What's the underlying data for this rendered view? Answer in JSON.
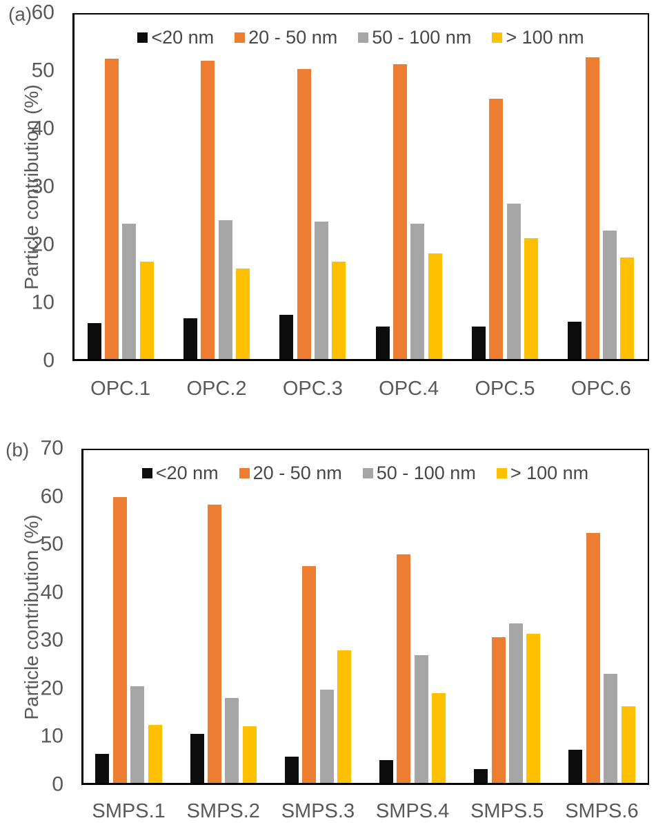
{
  "page": {
    "background": "#ffffff",
    "text_color": "#595959",
    "axis_color": "#000000"
  },
  "chart_data": [
    {
      "type": "bar",
      "panel_label": "(a)",
      "title": "",
      "ylabel": "Particle contribution (%)",
      "xlabel": "",
      "ylim": [
        0,
        60
      ],
      "yticks": [
        0,
        10,
        20,
        30,
        40,
        50,
        60
      ],
      "grid": false,
      "legend_position": "top-center-inside",
      "categories": [
        "OPC.1",
        "OPC.2",
        "OPC.3",
        "OPC.4",
        "OPC.5",
        "OPC.6"
      ],
      "series": [
        {
          "name": "<20 nm",
          "color": "#0d0d0d",
          "values": [
            6.5,
            7.4,
            8.0,
            6.0,
            6.0,
            6.8
          ]
        },
        {
          "name": "20 - 50 nm",
          "color": "#ed7d31",
          "values": [
            52.1,
            51.8,
            50.3,
            51.2,
            45.2,
            52.4
          ]
        },
        {
          "name": "50 - 100 nm",
          "color": "#a6a6a6",
          "values": [
            23.7,
            24.3,
            24.0,
            23.7,
            27.1,
            22.5
          ]
        },
        {
          "name": "> 100 nm",
          "color": "#ffc000",
          "values": [
            17.1,
            16.0,
            17.2,
            18.6,
            21.2,
            17.8
          ]
        }
      ]
    },
    {
      "type": "bar",
      "panel_label": "(b)",
      "title": "",
      "ylabel": "Particle contribution (%)",
      "xlabel": "",
      "ylim": [
        0,
        70
      ],
      "yticks": [
        0,
        10,
        20,
        30,
        40,
        50,
        60,
        70
      ],
      "grid": false,
      "legend_position": "top-center-inside",
      "categories": [
        "SMPS.1",
        "SMPS.2",
        "SMPS.3",
        "SMPS.4",
        "SMPS.5",
        "SMPS.6"
      ],
      "series": [
        {
          "name": "<20 nm",
          "color": "#0d0d0d",
          "values": [
            6.4,
            10.6,
            5.9,
            5.2,
            3.3,
            7.3
          ]
        },
        {
          "name": "20 - 50 nm",
          "color": "#ed7d31",
          "values": [
            59.9,
            58.4,
            45.6,
            48.0,
            30.8,
            52.4
          ]
        },
        {
          "name": "50 - 100 nm",
          "color": "#a6a6a6",
          "values": [
            20.5,
            18.1,
            19.8,
            27.0,
            33.6,
            23.1
          ]
        },
        {
          "name": "> 100 nm",
          "color": "#ffc000",
          "values": [
            12.5,
            12.2,
            28.1,
            19.1,
            31.5,
            16.4
          ]
        }
      ]
    }
  ]
}
